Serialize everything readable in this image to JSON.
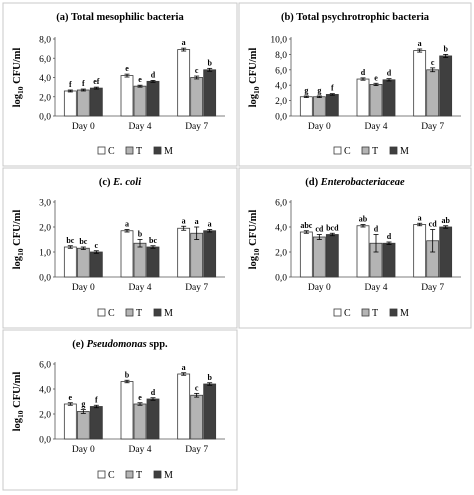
{
  "colors": {
    "C": "#ffffff",
    "T": "#b4b4b4",
    "M": "#3f3f3f",
    "stroke": "#3a3a3a",
    "panel_border": "#c8c8c8"
  },
  "chart_data": [
    {
      "type": "bar",
      "title": "(a) Total mesophilic bacteria",
      "ylabel": "log10 CFU/ml",
      "ylim": [
        0,
        8
      ],
      "yticks": [
        "0,0",
        "2,0",
        "4,0",
        "6,0",
        "8,0"
      ],
      "categories": [
        "Day 0",
        "Day 4",
        "Day 7"
      ],
      "series": [
        {
          "name": "C",
          "values": [
            2.6,
            4.2,
            6.9
          ],
          "errors": [
            0.1,
            0.15,
            0.15
          ],
          "letters": [
            "f",
            "e",
            "a"
          ]
        },
        {
          "name": "T",
          "values": [
            2.7,
            3.1,
            4.0
          ],
          "errors": [
            0.1,
            0.1,
            0.15
          ],
          "letters": [
            "f",
            "e",
            "c"
          ]
        },
        {
          "name": "M",
          "values": [
            2.9,
            3.6,
            4.8
          ],
          "errors": [
            0.1,
            0.1,
            0.15
          ],
          "letters": [
            "ef",
            "d",
            "b"
          ]
        }
      ]
    },
    {
      "type": "bar",
      "title": "(b) Total psychrotrophic  bacteria",
      "ylabel": "log10 CFU/ml",
      "ylim": [
        0,
        10
      ],
      "yticks": [
        "0,0",
        "2,0",
        "4,0",
        "6,0",
        "8,0",
        "10,0"
      ],
      "categories": [
        "Day 0",
        "Day 4",
        "Day 7"
      ],
      "series": [
        {
          "name": "C",
          "values": [
            2.5,
            4.8,
            8.5
          ],
          "errors": [
            0.1,
            0.15,
            0.2
          ],
          "letters": [
            "g",
            "d",
            "a"
          ]
        },
        {
          "name": "T",
          "values": [
            2.5,
            4.1,
            6.0
          ],
          "errors": [
            0.1,
            0.15,
            0.25
          ],
          "letters": [
            "g",
            "e",
            "c"
          ]
        },
        {
          "name": "M",
          "values": [
            2.8,
            4.7,
            7.8
          ],
          "errors": [
            0.1,
            0.15,
            0.2
          ],
          "letters": [
            "f",
            "d",
            "b"
          ]
        }
      ]
    },
    {
      "type": "bar",
      "title_parts": [
        "(c) ",
        "E. coli"
      ],
      "ylabel": "log10 CFU/ml",
      "ylim": [
        0,
        3
      ],
      "yticks": [
        "0,0",
        "1,0",
        "2,0",
        "3,0"
      ],
      "categories": [
        "Day 0",
        "Day 4",
        "Day 7"
      ],
      "series": [
        {
          "name": "C",
          "values": [
            1.2,
            1.85,
            1.95
          ],
          "errors": [
            0.05,
            0.05,
            0.08
          ],
          "letters": [
            "bc",
            "a",
            "a"
          ]
        },
        {
          "name": "T",
          "values": [
            1.15,
            1.35,
            1.75
          ],
          "errors": [
            0.05,
            0.15,
            0.25
          ],
          "letters": [
            "bc",
            "b",
            "a"
          ]
        },
        {
          "name": "M",
          "values": [
            1.0,
            1.2,
            1.85
          ],
          "errors": [
            0.05,
            0.05,
            0.05
          ],
          "letters": [
            "c",
            "bc",
            "a"
          ]
        }
      ]
    },
    {
      "type": "bar",
      "title_parts": [
        "(d) ",
        "Enterobacteriaceae"
      ],
      "ylabel": "log10 CFU/ml",
      "ylim": [
        0,
        6
      ],
      "yticks": [
        "0,0",
        "2,0",
        "4,0",
        "6,0"
      ],
      "categories": [
        "Day 0",
        "Day 4",
        "Day 7"
      ],
      "series": [
        {
          "name": "C",
          "values": [
            3.6,
            4.1,
            4.2
          ],
          "errors": [
            0.1,
            0.1,
            0.1
          ],
          "letters": [
            "abc",
            "ab",
            "a"
          ]
        },
        {
          "name": "T",
          "values": [
            3.2,
            2.7,
            2.9
          ],
          "errors": [
            0.2,
            0.7,
            0.9
          ],
          "letters": [
            "cd",
            "d",
            "cd"
          ]
        },
        {
          "name": "M",
          "values": [
            3.4,
            2.7,
            4.0
          ],
          "errors": [
            0.1,
            0.1,
            0.1
          ],
          "letters": [
            "bcd",
            "d",
            "ab"
          ]
        }
      ]
    },
    {
      "type": "bar",
      "title_parts": [
        "(e) ",
        "Pseudomonas",
        " spp."
      ],
      "ylabel": "log10 CFU/ml",
      "ylim": [
        0,
        6
      ],
      "yticks": [
        "0,0",
        "2,0",
        "4,0",
        "6,0"
      ],
      "categories": [
        "Day 0",
        "Day 4",
        "Day 7"
      ],
      "series": [
        {
          "name": "C",
          "values": [
            2.8,
            4.6,
            5.2
          ],
          "errors": [
            0.1,
            0.1,
            0.1
          ],
          "letters": [
            "e",
            "b",
            "a"
          ]
        },
        {
          "name": "T",
          "values": [
            2.2,
            2.8,
            3.5
          ],
          "errors": [
            0.15,
            0.1,
            0.15
          ],
          "letters": [
            "g",
            "e",
            "c"
          ]
        },
        {
          "name": "M",
          "values": [
            2.6,
            3.2,
            4.4
          ],
          "errors": [
            0.1,
            0.1,
            0.1
          ],
          "letters": [
            "f",
            "d",
            "b"
          ]
        }
      ]
    }
  ]
}
